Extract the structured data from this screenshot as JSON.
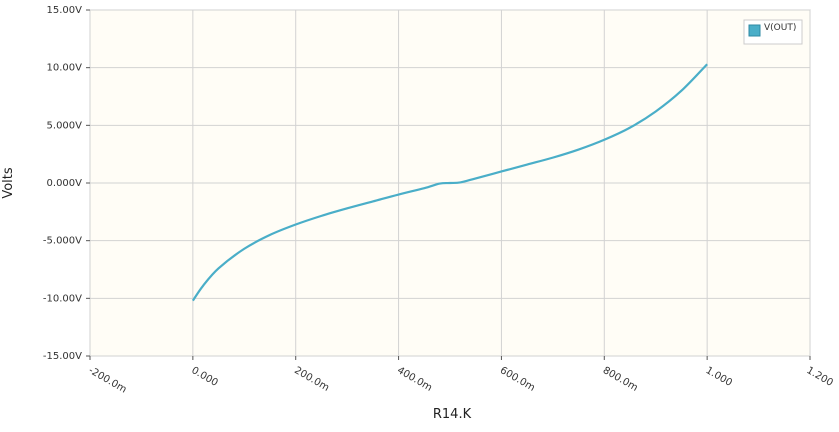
{
  "chart_data": {
    "type": "line",
    "xlabel": "R14.K",
    "ylabel": "Volts",
    "xlim": [
      -0.2,
      1.2
    ],
    "ylim": [
      -15,
      15
    ],
    "x_ticks": [
      -0.2,
      0,
      0.2,
      0.4,
      0.6,
      0.8,
      1.0,
      1.2
    ],
    "x_tick_labels": [
      "-200.0m",
      "0.000",
      "200.0m",
      "400.0m",
      "600.0m",
      "800.0m",
      "1.000",
      "1.200"
    ],
    "y_ticks": [
      15,
      10,
      5,
      0,
      -5,
      -10,
      -15
    ],
    "y_tick_labels": [
      "15.00V",
      "10.00V",
      "5.000V",
      "0.000V",
      "-5.000V",
      "-10.00V",
      "-15.00V"
    ],
    "grid": true,
    "legend_position": "top-right",
    "background": "#fffdf6",
    "series": [
      {
        "name": "V(OUT)",
        "color": "#4aaec8",
        "x": [
          0.0,
          0.02,
          0.05,
          0.1,
          0.15,
          0.2,
          0.25,
          0.3,
          0.35,
          0.4,
          0.45,
          0.48,
          0.5,
          0.52,
          0.55,
          0.6,
          0.65,
          0.7,
          0.75,
          0.8,
          0.85,
          0.9,
          0.95,
          1.0
        ],
        "y": [
          -10.2,
          -8.9,
          -7.4,
          -5.7,
          -4.5,
          -3.6,
          -2.85,
          -2.2,
          -1.6,
          -1.0,
          -0.45,
          -0.05,
          0.0,
          0.05,
          0.4,
          1.0,
          1.6,
          2.2,
          2.9,
          3.75,
          4.8,
          6.2,
          8.0,
          10.3
        ]
      }
    ]
  }
}
